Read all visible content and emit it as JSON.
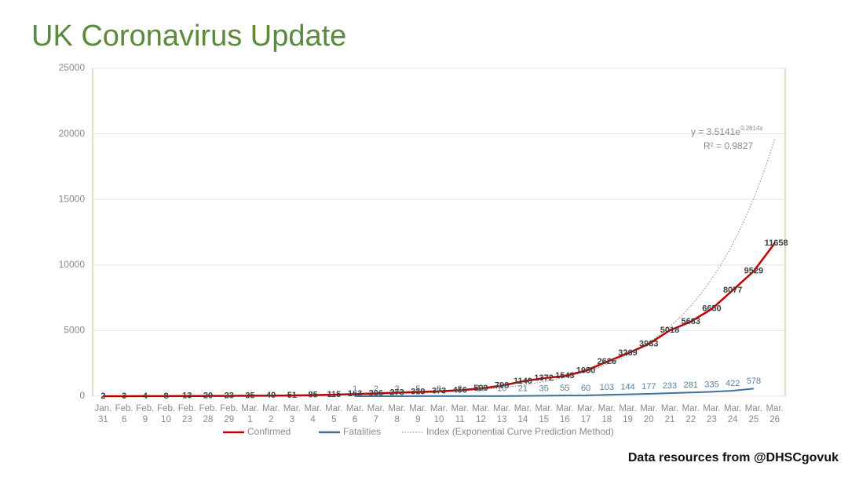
{
  "chart_data": {
    "type": "line",
    "title": "UK Coronavirus Update",
    "source": "Data resources from @DHSCgovuk",
    "categories": [
      [
        "Jan.",
        "31"
      ],
      [
        "Feb.",
        "6"
      ],
      [
        "Feb.",
        "9"
      ],
      [
        "Feb.",
        "10"
      ],
      [
        "Feb.",
        "23"
      ],
      [
        "Feb.",
        "28"
      ],
      [
        "Feb.",
        "29"
      ],
      [
        "Mar.",
        "1"
      ],
      [
        "Mar.",
        "2"
      ],
      [
        "Mar.",
        "3"
      ],
      [
        "Mar.",
        "4"
      ],
      [
        "Mar.",
        "5"
      ],
      [
        "Mar.",
        "6"
      ],
      [
        "Mar.",
        "7"
      ],
      [
        "Mar.",
        "8"
      ],
      [
        "Mar.",
        "9"
      ],
      [
        "Mar.",
        "10"
      ],
      [
        "Mar.",
        "11"
      ],
      [
        "Mar.",
        "12"
      ],
      [
        "Mar.",
        "13"
      ],
      [
        "Mar.",
        "14"
      ],
      [
        "Mar.",
        "15"
      ],
      [
        "Mar.",
        "16"
      ],
      [
        "Mar.",
        "17"
      ],
      [
        "Mar.",
        "18"
      ],
      [
        "Mar.",
        "19"
      ],
      [
        "Mar.",
        "20"
      ],
      [
        "Mar.",
        "21"
      ],
      [
        "Mar.",
        "22"
      ],
      [
        "Mar.",
        "23"
      ],
      [
        "Mar.",
        "24"
      ],
      [
        "Mar.",
        "25"
      ],
      [
        "Mar.",
        "26"
      ]
    ],
    "series": [
      {
        "name": "Confirmed",
        "color": "#c00000",
        "values": [
          2,
          3,
          4,
          8,
          13,
          20,
          23,
          35,
          40,
          51,
          85,
          115,
          163,
          206,
          273,
          319,
          373,
          456,
          590,
          798,
          1140,
          1372,
          1543,
          1950,
          2626,
          3269,
          3983,
          5018,
          5683,
          6650,
          8077,
          9529,
          11658
        ]
      },
      {
        "name": "Fatalities",
        "color": "#41719c",
        "values": [
          null,
          null,
          null,
          null,
          null,
          null,
          null,
          null,
          null,
          null,
          null,
          null,
          1,
          2,
          3,
          5,
          6,
          8,
          10,
          10,
          21,
          35,
          55,
          60,
          103,
          144,
          177,
          233,
          281,
          335,
          422,
          578,
          null
        ]
      }
    ],
    "trendline": {
      "name": "Index (Exponential Curve Prediction Method)",
      "color": "#9a9a9a",
      "a": 3.5141,
      "b": 0.2614,
      "equation": "y = 3.5141e",
      "exponent": "0.2614x",
      "r2": "R² = 0.9827"
    },
    "ylim": [
      0,
      25000
    ],
    "yticks": [
      0,
      5000,
      10000,
      15000,
      20000,
      25000
    ],
    "grid": true
  }
}
